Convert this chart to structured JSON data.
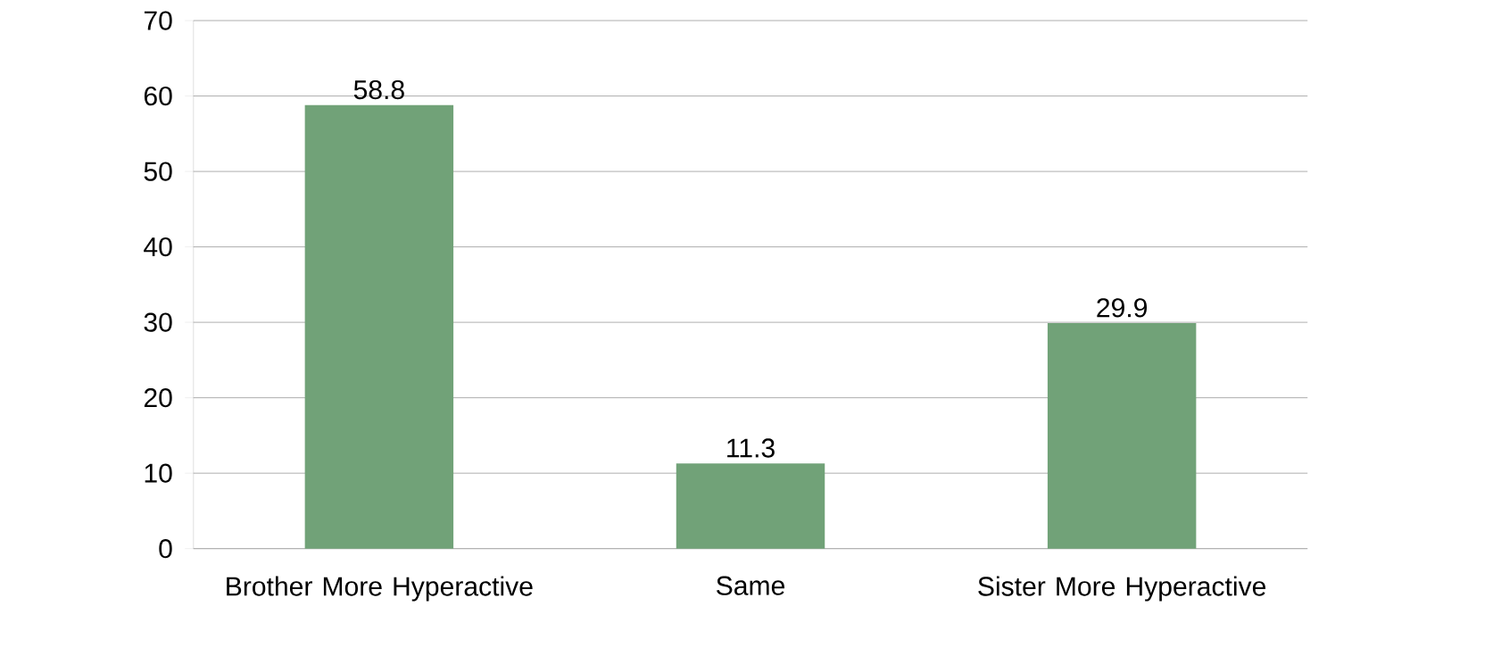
{
  "chart_data": {
    "type": "bar",
    "categories": [
      "Brother More Hyperactive",
      "Same",
      "Sister More Hyperactive"
    ],
    "values": [
      58.8,
      11.3,
      29.9
    ],
    "color": "#71a278",
    "ylim": [
      0,
      70
    ],
    "yticks": [
      0,
      10,
      20,
      30,
      40,
      50,
      60,
      70
    ],
    "grid": "y",
    "data_labels": true
  }
}
